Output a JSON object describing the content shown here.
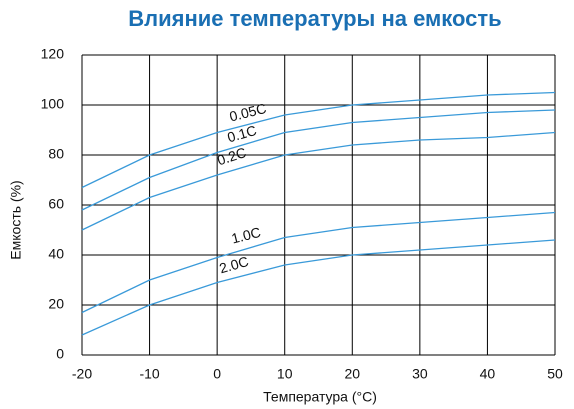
{
  "chart_data": {
    "type": "line",
    "title": "Влияние температуры на емкость",
    "x_label": "Температура (°C)",
    "y_label": "Емкость (%)",
    "x": [
      -20,
      -10,
      0,
      10,
      20,
      30,
      40,
      50
    ],
    "series": [
      {
        "name": "0.05C",
        "color": "#3a9ad9",
        "values": [
          67,
          80,
          89,
          96,
          100,
          102,
          104,
          105
        ]
      },
      {
        "name": "0.1C",
        "color": "#3a9ad9",
        "values": [
          58,
          71,
          81,
          89,
          93,
          95,
          97,
          98
        ]
      },
      {
        "name": "0.2C",
        "color": "#3a9ad9",
        "values": [
          50,
          63,
          72,
          80,
          84,
          86,
          87,
          89
        ]
      },
      {
        "name": "1.0C",
        "color": "#3a9ad9",
        "values": [
          17,
          30,
          39,
          47,
          51,
          53,
          55,
          57
        ]
      },
      {
        "name": "2.0C",
        "color": "#3a9ad9",
        "values": [
          8,
          20,
          29,
          36,
          40,
          42,
          44,
          46
        ]
      }
    ],
    "xlim": [
      -20,
      50
    ],
    "xticks": [
      -20,
      -10,
      0,
      10,
      20,
      30,
      40,
      50
    ],
    "ylim": [
      0,
      120
    ],
    "yticks": [
      0,
      20,
      40,
      60,
      80,
      100,
      120
    ],
    "grid": true
  }
}
